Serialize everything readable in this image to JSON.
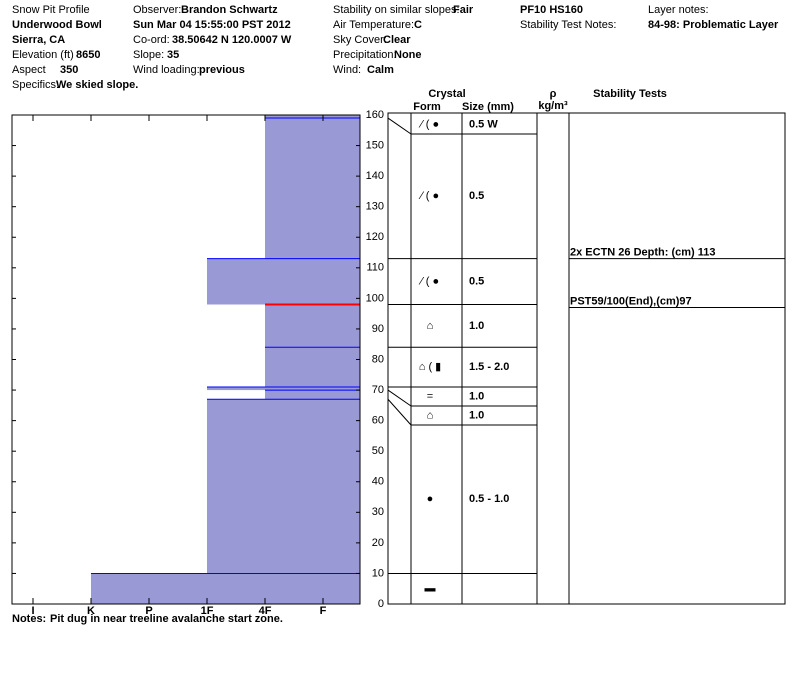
{
  "header": {
    "title": "Snow Pit Profile",
    "location": "Underwood Bowl",
    "region": "Sierra, CA",
    "elevation_label": "Elevation (ft)",
    "elevation": "8650",
    "aspect_label": "Aspect",
    "aspect": "350",
    "specifics_label": "Specifics:",
    "specifics": "We skied slope.",
    "observer_label": "Observer:",
    "observer": "Brandon Schwartz",
    "date": "Sun Mar 04 15:55:00 PST 2012",
    "coord_label": "Co-ord:",
    "coord": "38.50642 N 120.0007 W",
    "slope_label": "Slope:",
    "slope": "35",
    "wind_loading_label": "Wind loading:",
    "wind_loading": "previous",
    "stability_label": "Stability on similar slopes:",
    "stability": "Fair",
    "air_temp_label": "Air Temperature:",
    "air_temp": "C",
    "sky_label": "Sky Cover:",
    "sky": "Clear",
    "precip_label": "Precipitation:",
    "precip": "None",
    "wind_label": "Wind:",
    "wind": "Calm",
    "pit_code": "PF10 HS160",
    "test_notes_label": "Stability Test Notes:",
    "layer_notes_label": "Layer notes:",
    "layer_notes": "84-98: Problematic Layer",
    "notes_label": "Notes:",
    "notes": "Pit dug in near treeline avalanche start zone."
  },
  "chart_data": {
    "type": "snowpit",
    "ylim": [
      0,
      160
    ],
    "yticks": [
      0,
      10,
      20,
      30,
      40,
      50,
      60,
      70,
      80,
      90,
      100,
      110,
      120,
      130,
      140,
      150,
      160
    ],
    "xticks": [
      "I",
      "K",
      "P",
      "1F",
      "4F",
      "F"
    ],
    "fill": "#9999d6",
    "edge": "#0000ff",
    "problem_boundary": 98,
    "problem_color": "#ff0000",
    "columns": {
      "crystal": "Crystal",
      "form": "Form",
      "size": "Size (mm)",
      "rho": "ρ",
      "rho_unit": "kg/m³",
      "tests": "Stability Tests"
    },
    "layers": [
      {
        "top": 160,
        "bottom": 159,
        "hardness": "4F",
        "form": "⁄ ( ●",
        "size": "0.5 W"
      },
      {
        "top": 159,
        "bottom": 113,
        "hardness": "4F",
        "form": "⁄ ( ●",
        "size": "0.5"
      },
      {
        "top": 113,
        "bottom": 98,
        "hardness": "1F",
        "form": "⁄ ( ●",
        "size": "0.5"
      },
      {
        "top": 98,
        "bottom": 84,
        "hardness": "4F",
        "form": "⌂",
        "size": "1.0"
      },
      {
        "top": 84,
        "bottom": 71,
        "hardness": "4F",
        "form": "⌂ ( ▮",
        "size": "1.5 - 2.0"
      },
      {
        "top": 71,
        "bottom": 70,
        "hardness": "1F",
        "form": "=",
        "size": "1.0"
      },
      {
        "top": 70,
        "bottom": 67,
        "hardness": "4F",
        "form": "⌂",
        "size": "1.0"
      },
      {
        "top": 67,
        "bottom": 10,
        "hardness": "1F",
        "form": "●",
        "size": "0.5 - 1.0"
      },
      {
        "top": 10,
        "bottom": 0,
        "hardness": "K",
        "form": "▬"
      }
    ],
    "tests": [
      {
        "depth": 113,
        "text": "2x ECTN 26  Depth: (cm) 113"
      },
      {
        "depth": 97,
        "text": "PST59/100(End),(cm)97"
      }
    ]
  }
}
